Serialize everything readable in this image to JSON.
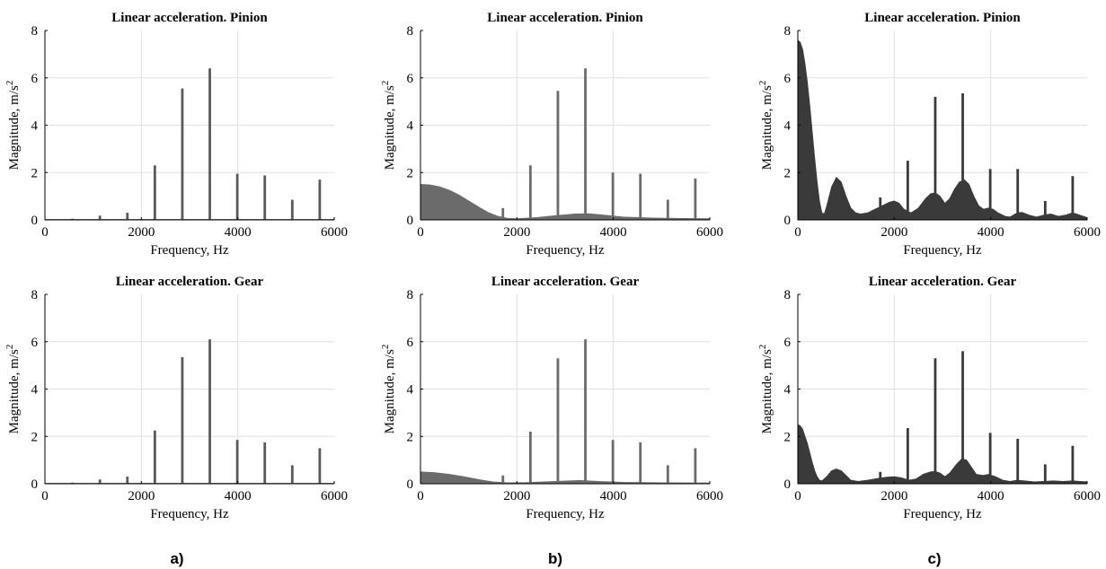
{
  "panel_labels": [
    "a)",
    "b)",
    "c)"
  ],
  "colors": {
    "a": "#5a5a5a",
    "b": "#6b6b6b",
    "c": "#3a3a3a",
    "grid": "#e0e0e0",
    "axis": "#000000"
  },
  "chart_data": [
    {
      "type": "area",
      "column": "a",
      "title": "Linear acceleration. Pinion",
      "xlabel": "Frequency, Hz",
      "ylabel": "Magnitude, m/s",
      "ylabel_sup": "2",
      "xlim": [
        0,
        6000
      ],
      "ylim": [
        0,
        8
      ],
      "xticks": [
        0,
        2000,
        4000,
        6000
      ],
      "yticks": [
        0,
        2,
        4,
        6,
        8
      ],
      "grid": true,
      "baseline": [
        [
          0,
          0.02
        ],
        [
          6000,
          0.02
        ]
      ],
      "peaks": [
        {
          "x": 570,
          "y": 0.05
        },
        {
          "x": 1140,
          "y": 0.18
        },
        {
          "x": 1710,
          "y": 0.3
        },
        {
          "x": 2280,
          "y": 2.3
        },
        {
          "x": 2850,
          "y": 5.55
        },
        {
          "x": 3420,
          "y": 6.4
        },
        {
          "x": 3990,
          "y": 1.95
        },
        {
          "x": 4560,
          "y": 1.88
        },
        {
          "x": 5130,
          "y": 0.85
        },
        {
          "x": 5700,
          "y": 1.7
        }
      ]
    },
    {
      "type": "area",
      "column": "b",
      "title": "Linear acceleration. Pinion",
      "xlabel": "Frequency, Hz",
      "ylabel": "Magnitude, m/s",
      "ylabel_sup": "2",
      "xlim": [
        0,
        6000
      ],
      "ylim": [
        0,
        8
      ],
      "xticks": [
        0,
        2000,
        4000,
        6000
      ],
      "yticks": [
        0,
        2,
        4,
        6,
        8
      ],
      "grid": true,
      "baseline": [
        [
          0,
          1.5
        ],
        [
          200,
          1.48
        ],
        [
          400,
          1.4
        ],
        [
          600,
          1.25
        ],
        [
          800,
          1.05
        ],
        [
          1000,
          0.8
        ],
        [
          1200,
          0.55
        ],
        [
          1400,
          0.32
        ],
        [
          1600,
          0.15
        ],
        [
          1800,
          0.07
        ],
        [
          2000,
          0.05
        ],
        [
          2400,
          0.1
        ],
        [
          2800,
          0.18
        ],
        [
          3200,
          0.25
        ],
        [
          3500,
          0.26
        ],
        [
          3800,
          0.2
        ],
        [
          4200,
          0.12
        ],
        [
          4800,
          0.08
        ],
        [
          5400,
          0.06
        ],
        [
          6000,
          0.05
        ]
      ],
      "peaks": [
        {
          "x": 1710,
          "y": 0.5
        },
        {
          "x": 2280,
          "y": 2.3
        },
        {
          "x": 2850,
          "y": 5.45
        },
        {
          "x": 3420,
          "y": 6.4
        },
        {
          "x": 3990,
          "y": 2.0
        },
        {
          "x": 4560,
          "y": 1.95
        },
        {
          "x": 5130,
          "y": 0.85
        },
        {
          "x": 5700,
          "y": 1.75
        }
      ]
    },
    {
      "type": "area",
      "column": "c",
      "title": "Linear acceleration. Pinion",
      "xlabel": "Frequency, Hz",
      "ylabel": "Magnitude, m/s",
      "ylabel_sup": "2",
      "xlim": [
        0,
        6000
      ],
      "ylim": [
        0,
        8
      ],
      "xticks": [
        0,
        2000,
        4000,
        6000
      ],
      "yticks": [
        0,
        2,
        4,
        6,
        8
      ],
      "grid": true,
      "baseline": [
        [
          0,
          7.6
        ],
        [
          50,
          7.5
        ],
        [
          100,
          7.2
        ],
        [
          150,
          6.6
        ],
        [
          200,
          5.8
        ],
        [
          250,
          4.8
        ],
        [
          300,
          3.7
        ],
        [
          350,
          2.6
        ],
        [
          400,
          1.6
        ],
        [
          450,
          0.8
        ],
        [
          500,
          0.3
        ],
        [
          550,
          0.25
        ],
        [
          600,
          0.6
        ],
        [
          700,
          1.4
        ],
        [
          800,
          1.8
        ],
        [
          900,
          1.6
        ],
        [
          1000,
          1.0
        ],
        [
          1100,
          0.5
        ],
        [
          1200,
          0.3
        ],
        [
          1300,
          0.25
        ],
        [
          1450,
          0.3
        ],
        [
          1600,
          0.45
        ],
        [
          1750,
          0.6
        ],
        [
          1900,
          0.75
        ],
        [
          2000,
          0.8
        ],
        [
          2100,
          0.7
        ],
        [
          2200,
          0.45
        ],
        [
          2350,
          0.3
        ],
        [
          2500,
          0.5
        ],
        [
          2650,
          0.9
        ],
        [
          2750,
          1.1
        ],
        [
          2850,
          1.15
        ],
        [
          2950,
          1.0
        ],
        [
          3050,
          0.7
        ],
        [
          3150,
          0.9
        ],
        [
          3250,
          1.3
        ],
        [
          3350,
          1.6
        ],
        [
          3450,
          1.7
        ],
        [
          3550,
          1.5
        ],
        [
          3650,
          1.0
        ],
        [
          3750,
          0.6
        ],
        [
          3850,
          0.45
        ],
        [
          3950,
          0.5
        ],
        [
          4050,
          0.45
        ],
        [
          4150,
          0.3
        ],
        [
          4300,
          0.15
        ],
        [
          4400,
          0.12
        ],
        [
          4550,
          0.3
        ],
        [
          4650,
          0.32
        ],
        [
          4800,
          0.2
        ],
        [
          4950,
          0.12
        ],
        [
          5100,
          0.2
        ],
        [
          5250,
          0.25
        ],
        [
          5400,
          0.15
        ],
        [
          5550,
          0.2
        ],
        [
          5700,
          0.3
        ],
        [
          5850,
          0.2
        ],
        [
          6000,
          0.1
        ]
      ],
      "peaks": [
        {
          "x": 1710,
          "y": 0.95
        },
        {
          "x": 2280,
          "y": 2.5
        },
        {
          "x": 2850,
          "y": 5.2
        },
        {
          "x": 3420,
          "y": 5.35
        },
        {
          "x": 3990,
          "y": 2.15
        },
        {
          "x": 4560,
          "y": 2.15
        },
        {
          "x": 5130,
          "y": 0.8
        },
        {
          "x": 5700,
          "y": 1.85
        }
      ]
    },
    {
      "type": "area",
      "column": "a",
      "title": "Linear acceleration. Gear",
      "xlabel": "Frequency, Hz",
      "ylabel": "Magnitude, m/s",
      "ylabel_sup": "2",
      "xlim": [
        0,
        6000
      ],
      "ylim": [
        0,
        8
      ],
      "xticks": [
        0,
        2000,
        4000,
        6000
      ],
      "yticks": [
        0,
        2,
        4,
        6,
        8
      ],
      "grid": true,
      "baseline": [
        [
          0,
          0.02
        ],
        [
          6000,
          0.02
        ]
      ],
      "peaks": [
        {
          "x": 570,
          "y": 0.05
        },
        {
          "x": 1140,
          "y": 0.18
        },
        {
          "x": 1710,
          "y": 0.3
        },
        {
          "x": 2280,
          "y": 2.25
        },
        {
          "x": 2850,
          "y": 5.35
        },
        {
          "x": 3420,
          "y": 6.1
        },
        {
          "x": 3990,
          "y": 1.85
        },
        {
          "x": 4560,
          "y": 1.75
        },
        {
          "x": 5130,
          "y": 0.78
        },
        {
          "x": 5700,
          "y": 1.5
        }
      ]
    },
    {
      "type": "area",
      "column": "b",
      "title": "Linear acceleration. Gear",
      "xlabel": "Frequency, Hz",
      "ylabel": "Magnitude, m/s",
      "ylabel_sup": "2",
      "xlim": [
        0,
        6000
      ],
      "ylim": [
        0,
        8
      ],
      "xticks": [
        0,
        2000,
        4000,
        6000
      ],
      "yticks": [
        0,
        2,
        4,
        6,
        8
      ],
      "grid": true,
      "baseline": [
        [
          0,
          0.5
        ],
        [
          300,
          0.47
        ],
        [
          600,
          0.4
        ],
        [
          900,
          0.3
        ],
        [
          1200,
          0.18
        ],
        [
          1500,
          0.08
        ],
        [
          1800,
          0.04
        ],
        [
          2200,
          0.05
        ],
        [
          2800,
          0.1
        ],
        [
          3300,
          0.14
        ],
        [
          3700,
          0.1
        ],
        [
          4200,
          0.06
        ],
        [
          5000,
          0.04
        ],
        [
          6000,
          0.03
        ]
      ],
      "peaks": [
        {
          "x": 1710,
          "y": 0.35
        },
        {
          "x": 2280,
          "y": 2.2
        },
        {
          "x": 2850,
          "y": 5.3
        },
        {
          "x": 3420,
          "y": 6.1
        },
        {
          "x": 3990,
          "y": 1.85
        },
        {
          "x": 4560,
          "y": 1.75
        },
        {
          "x": 5130,
          "y": 0.78
        },
        {
          "x": 5700,
          "y": 1.5
        }
      ]
    },
    {
      "type": "area",
      "column": "c",
      "title": "Linear acceleration. Gear",
      "xlabel": "Frequency, Hz",
      "ylabel": "Magnitude, m/s",
      "ylabel_sup": "2",
      "xlim": [
        0,
        6000
      ],
      "ylim": [
        0,
        8
      ],
      "xticks": [
        0,
        2000,
        4000,
        6000
      ],
      "yticks": [
        0,
        2,
        4,
        6,
        8
      ],
      "grid": true,
      "baseline": [
        [
          0,
          2.5
        ],
        [
          50,
          2.45
        ],
        [
          100,
          2.3
        ],
        [
          150,
          2.0
        ],
        [
          200,
          1.7
        ],
        [
          250,
          1.3
        ],
        [
          300,
          0.9
        ],
        [
          350,
          0.55
        ],
        [
          400,
          0.3
        ],
        [
          450,
          0.15
        ],
        [
          500,
          0.12
        ],
        [
          600,
          0.3
        ],
        [
          700,
          0.55
        ],
        [
          800,
          0.62
        ],
        [
          900,
          0.55
        ],
        [
          1000,
          0.35
        ],
        [
          1100,
          0.15
        ],
        [
          1250,
          0.1
        ],
        [
          1450,
          0.15
        ],
        [
          1650,
          0.22
        ],
        [
          1850,
          0.28
        ],
        [
          2000,
          0.3
        ],
        [
          2150,
          0.25
        ],
        [
          2300,
          0.15
        ],
        [
          2450,
          0.2
        ],
        [
          2600,
          0.4
        ],
        [
          2750,
          0.5
        ],
        [
          2850,
          0.52
        ],
        [
          2950,
          0.45
        ],
        [
          3050,
          0.3
        ],
        [
          3150,
          0.45
        ],
        [
          3300,
          0.85
        ],
        [
          3400,
          1.05
        ],
        [
          3500,
          1.0
        ],
        [
          3600,
          0.7
        ],
        [
          3700,
          0.4
        ],
        [
          3850,
          0.35
        ],
        [
          3950,
          0.4
        ],
        [
          4100,
          0.3
        ],
        [
          4250,
          0.15
        ],
        [
          4400,
          0.1
        ],
        [
          4550,
          0.15
        ],
        [
          4700,
          0.12
        ],
        [
          4900,
          0.08
        ],
        [
          5100,
          0.1
        ],
        [
          5300,
          0.12
        ],
        [
          5500,
          0.1
        ],
        [
          5700,
          0.12
        ],
        [
          5850,
          0.1
        ],
        [
          6000,
          0.08
        ]
      ],
      "peaks": [
        {
          "x": 1710,
          "y": 0.5
        },
        {
          "x": 2280,
          "y": 2.35
        },
        {
          "x": 2850,
          "y": 5.3
        },
        {
          "x": 3420,
          "y": 5.6
        },
        {
          "x": 3990,
          "y": 2.15
        },
        {
          "x": 4560,
          "y": 1.9
        },
        {
          "x": 5130,
          "y": 0.82
        },
        {
          "x": 5700,
          "y": 1.6
        }
      ]
    }
  ]
}
